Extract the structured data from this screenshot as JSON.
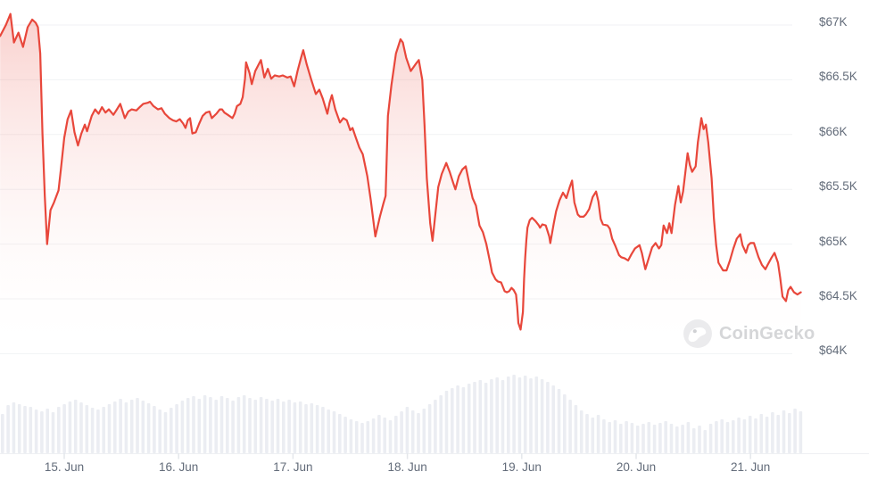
{
  "watermark": {
    "text": "CoinGecko"
  },
  "colors": {
    "background": "#ffffff",
    "line": "#e8473b",
    "fill_top": "rgba(232,71,59,0.26)",
    "fill_bottom": "rgba(255,255,255,0)",
    "grid": "#f1f2f4",
    "axis_text": "#636c7a",
    "tick": "#e4e7eb",
    "separator": "#eef0f3",
    "volume_bar": "#ebedf2",
    "watermark_text": "#d5d6d8",
    "watermark_circle": "#ebebed",
    "watermark_eye": "#d0d1d4"
  },
  "chart_data": {
    "type": "line",
    "title": "",
    "legend": "none",
    "grid": "horizontal-only",
    "y_axis": {
      "tick_labels": [
        "$67K",
        "$66.5K",
        "$66K",
        "$65.5K",
        "$65K",
        "$64.5K",
        "$64K"
      ],
      "tick_values_k": [
        67,
        66.5,
        66,
        65.5,
        65,
        64.5,
        64
      ],
      "unit": "USD thousands"
    },
    "x_axis": {
      "tick_labels": [
        "15. Jun",
        "16. Jun",
        "17. Jun",
        "18. Jun",
        "19. Jun",
        "20. Jun",
        "21. Jun"
      ],
      "tick_days": [
        15,
        16,
        17,
        18,
        19,
        20,
        21
      ],
      "range_days": [
        14.44,
        21.46
      ]
    },
    "price_points": [
      [
        14.44,
        66.9
      ],
      [
        14.49,
        67.0
      ],
      [
        14.53,
        67.1
      ],
      [
        14.56,
        66.84
      ],
      [
        14.6,
        66.93
      ],
      [
        14.64,
        66.8
      ],
      [
        14.68,
        66.98
      ],
      [
        14.72,
        67.05
      ],
      [
        14.75,
        67.02
      ],
      [
        14.77,
        66.98
      ],
      [
        14.79,
        66.74
      ],
      [
        14.81,
        66.01
      ],
      [
        14.83,
        65.44
      ],
      [
        14.85,
        65.0
      ],
      [
        14.88,
        65.31
      ],
      [
        14.91,
        65.38
      ],
      [
        14.95,
        65.49
      ],
      [
        14.97,
        65.68
      ],
      [
        15.0,
        65.97
      ],
      [
        15.03,
        66.14
      ],
      [
        15.06,
        66.22
      ],
      [
        15.09,
        66.02
      ],
      [
        15.12,
        65.9
      ],
      [
        15.15,
        66.01
      ],
      [
        15.18,
        66.09
      ],
      [
        15.2,
        66.03
      ],
      [
        15.24,
        66.17
      ],
      [
        15.27,
        66.23
      ],
      [
        15.3,
        66.19
      ],
      [
        15.33,
        66.25
      ],
      [
        15.36,
        66.2
      ],
      [
        15.39,
        66.23
      ],
      [
        15.43,
        66.18
      ],
      [
        15.46,
        66.23
      ],
      [
        15.49,
        66.28
      ],
      [
        15.53,
        66.15
      ],
      [
        15.56,
        66.21
      ],
      [
        15.59,
        66.23
      ],
      [
        15.63,
        66.22
      ],
      [
        15.66,
        66.25
      ],
      [
        15.69,
        66.28
      ],
      [
        15.73,
        66.29
      ],
      [
        15.75,
        66.3
      ],
      [
        15.78,
        66.26
      ],
      [
        15.82,
        66.23
      ],
      [
        15.85,
        66.24
      ],
      [
        15.88,
        66.19
      ],
      [
        15.92,
        66.15
      ],
      [
        15.95,
        66.13
      ],
      [
        15.98,
        66.12
      ],
      [
        16.01,
        66.14
      ],
      [
        16.04,
        66.1
      ],
      [
        16.06,
        66.06
      ],
      [
        16.08,
        66.13
      ],
      [
        16.1,
        66.15
      ],
      [
        16.12,
        66.01
      ],
      [
        16.15,
        66.02
      ],
      [
        16.18,
        66.1
      ],
      [
        16.21,
        66.17
      ],
      [
        16.24,
        66.2
      ],
      [
        16.27,
        66.21
      ],
      [
        16.29,
        66.15
      ],
      [
        16.33,
        66.19
      ],
      [
        16.36,
        66.23
      ],
      [
        16.38,
        66.23
      ],
      [
        16.4,
        66.2
      ],
      [
        16.43,
        66.18
      ],
      [
        16.47,
        66.15
      ],
      [
        16.49,
        66.19
      ],
      [
        16.51,
        66.26
      ],
      [
        16.54,
        66.28
      ],
      [
        16.56,
        66.34
      ],
      [
        16.58,
        66.51
      ],
      [
        16.59,
        66.66
      ],
      [
        16.62,
        66.56
      ],
      [
        16.64,
        66.46
      ],
      [
        16.67,
        66.58
      ],
      [
        16.7,
        66.64
      ],
      [
        16.72,
        66.68
      ],
      [
        16.75,
        66.52
      ],
      [
        16.78,
        66.6
      ],
      [
        16.81,
        66.51
      ],
      [
        16.84,
        66.54
      ],
      [
        16.88,
        66.53
      ],
      [
        16.91,
        66.54
      ],
      [
        16.95,
        66.52
      ],
      [
        16.98,
        66.53
      ],
      [
        17.01,
        66.44
      ],
      [
        17.04,
        66.58
      ],
      [
        17.07,
        66.7
      ],
      [
        17.09,
        66.77
      ],
      [
        17.12,
        66.64
      ],
      [
        17.16,
        66.5
      ],
      [
        17.2,
        66.37
      ],
      [
        17.23,
        66.41
      ],
      [
        17.26,
        66.33
      ],
      [
        17.3,
        66.19
      ],
      [
        17.32,
        66.29
      ],
      [
        17.34,
        66.36
      ],
      [
        17.37,
        66.23
      ],
      [
        17.41,
        66.11
      ],
      [
        17.44,
        66.15
      ],
      [
        17.47,
        66.13
      ],
      [
        17.5,
        66.04
      ],
      [
        17.52,
        66.06
      ],
      [
        17.55,
        65.97
      ],
      [
        17.58,
        65.88
      ],
      [
        17.61,
        65.82
      ],
      [
        17.65,
        65.62
      ],
      [
        17.68,
        65.4
      ],
      [
        17.72,
        65.07
      ],
      [
        17.76,
        65.25
      ],
      [
        17.79,
        65.37
      ],
      [
        17.81,
        65.44
      ],
      [
        17.83,
        66.17
      ],
      [
        17.86,
        66.45
      ],
      [
        17.9,
        66.74
      ],
      [
        17.94,
        66.87
      ],
      [
        17.96,
        66.84
      ],
      [
        17.99,
        66.7
      ],
      [
        18.03,
        66.58
      ],
      [
        18.07,
        66.64
      ],
      [
        18.1,
        66.68
      ],
      [
        18.13,
        66.5
      ],
      [
        18.15,
        66.09
      ],
      [
        18.17,
        65.6
      ],
      [
        18.2,
        65.19
      ],
      [
        18.22,
        65.03
      ],
      [
        18.24,
        65.23
      ],
      [
        18.27,
        65.52
      ],
      [
        18.3,
        65.64
      ],
      [
        18.34,
        65.74
      ],
      [
        18.37,
        65.66
      ],
      [
        18.4,
        65.56
      ],
      [
        18.42,
        65.5
      ],
      [
        18.45,
        65.62
      ],
      [
        18.48,
        65.68
      ],
      [
        18.51,
        65.71
      ],
      [
        18.54,
        65.56
      ],
      [
        18.57,
        65.42
      ],
      [
        18.6,
        65.35
      ],
      [
        18.63,
        65.17
      ],
      [
        18.66,
        65.11
      ],
      [
        18.69,
        65.0
      ],
      [
        18.72,
        64.85
      ],
      [
        18.74,
        64.74
      ],
      [
        18.77,
        64.68
      ],
      [
        18.79,
        64.66
      ],
      [
        18.82,
        64.65
      ],
      [
        18.85,
        64.57
      ],
      [
        18.87,
        64.56
      ],
      [
        18.89,
        64.57
      ],
      [
        18.91,
        64.6
      ],
      [
        18.93,
        64.58
      ],
      [
        18.95,
        64.54
      ],
      [
        18.96,
        64.43
      ],
      [
        18.97,
        64.28
      ],
      [
        18.99,
        64.22
      ],
      [
        19.01,
        64.38
      ],
      [
        19.02,
        64.68
      ],
      [
        19.03,
        64.87
      ],
      [
        19.04,
        65.03
      ],
      [
        19.05,
        65.15
      ],
      [
        19.07,
        65.22
      ],
      [
        19.09,
        65.24
      ],
      [
        19.12,
        65.21
      ],
      [
        19.15,
        65.17
      ],
      [
        19.16,
        65.15
      ],
      [
        19.18,
        65.18
      ],
      [
        19.21,
        65.17
      ],
      [
        19.24,
        65.07
      ],
      [
        19.25,
        65.01
      ],
      [
        19.28,
        65.19
      ],
      [
        19.3,
        65.3
      ],
      [
        19.33,
        65.4
      ],
      [
        19.36,
        65.47
      ],
      [
        19.39,
        65.42
      ],
      [
        19.42,
        65.52
      ],
      [
        19.44,
        65.58
      ],
      [
        19.46,
        65.38
      ],
      [
        19.49,
        65.27
      ],
      [
        19.51,
        65.25
      ],
      [
        19.54,
        65.25
      ],
      [
        19.56,
        65.27
      ],
      [
        19.59,
        65.32
      ],
      [
        19.62,
        65.43
      ],
      [
        19.65,
        65.48
      ],
      [
        19.67,
        65.39
      ],
      [
        19.69,
        65.23
      ],
      [
        19.71,
        65.18
      ],
      [
        19.75,
        65.17
      ],
      [
        19.77,
        65.14
      ],
      [
        19.79,
        65.05
      ],
      [
        19.82,
        64.98
      ],
      [
        19.85,
        64.9
      ],
      [
        19.87,
        64.88
      ],
      [
        19.9,
        64.87
      ],
      [
        19.93,
        64.85
      ],
      [
        19.96,
        64.91
      ],
      [
        19.99,
        64.96
      ],
      [
        20.03,
        64.99
      ],
      [
        20.05,
        64.92
      ],
      [
        20.08,
        64.77
      ],
      [
        20.11,
        64.87
      ],
      [
        20.14,
        64.97
      ],
      [
        20.17,
        65.01
      ],
      [
        20.2,
        64.96
      ],
      [
        20.22,
        64.99
      ],
      [
        20.24,
        65.17
      ],
      [
        20.27,
        65.1
      ],
      [
        20.29,
        65.19
      ],
      [
        20.31,
        65.1
      ],
      [
        20.34,
        65.36
      ],
      [
        20.37,
        65.53
      ],
      [
        20.39,
        65.38
      ],
      [
        20.41,
        65.48
      ],
      [
        20.45,
        65.83
      ],
      [
        20.47,
        65.72
      ],
      [
        20.49,
        65.66
      ],
      [
        20.52,
        65.71
      ],
      [
        20.54,
        65.93
      ],
      [
        20.57,
        66.15
      ],
      [
        20.59,
        66.05
      ],
      [
        20.61,
        66.09
      ],
      [
        20.63,
        65.93
      ],
      [
        20.66,
        65.6
      ],
      [
        20.68,
        65.23
      ],
      [
        20.7,
        64.99
      ],
      [
        20.72,
        64.83
      ],
      [
        20.76,
        64.76
      ],
      [
        20.79,
        64.76
      ],
      [
        20.82,
        64.85
      ],
      [
        20.85,
        64.96
      ],
      [
        20.88,
        65.05
      ],
      [
        20.91,
        65.09
      ],
      [
        20.93,
        64.99
      ],
      [
        20.96,
        64.92
      ],
      [
        20.98,
        64.99
      ],
      [
        21.0,
        65.01
      ],
      [
        21.03,
        65.01
      ],
      [
        21.07,
        64.88
      ],
      [
        21.1,
        64.81
      ],
      [
        21.13,
        64.77
      ],
      [
        21.15,
        64.81
      ],
      [
        21.18,
        64.87
      ],
      [
        21.21,
        64.92
      ],
      [
        21.24,
        64.83
      ],
      [
        21.26,
        64.69
      ],
      [
        21.28,
        64.52
      ],
      [
        21.31,
        64.48
      ],
      [
        21.33,
        64.58
      ],
      [
        21.35,
        64.61
      ],
      [
        21.38,
        64.56
      ],
      [
        21.41,
        64.54
      ],
      [
        21.44,
        64.56
      ]
    ],
    "volume_bars": [
      44,
      54,
      57,
      55,
      53,
      52,
      49,
      47,
      50,
      46,
      52,
      55,
      58,
      60,
      57,
      54,
      51,
      49,
      52,
      55,
      58,
      61,
      57,
      60,
      62,
      59,
      56,
      53,
      49,
      46,
      51,
      55,
      59,
      62,
      64,
      61,
      65,
      63,
      60,
      64,
      62,
      59,
      63,
      65,
      62,
      60,
      63,
      61,
      59,
      61,
      58,
      60,
      57,
      58,
      55,
      56,
      54,
      52,
      49,
      47,
      44,
      41,
      38,
      36,
      34,
      36,
      39,
      43,
      40,
      37,
      42,
      47,
      52,
      48,
      45,
      50,
      55,
      60,
      65,
      70,
      73,
      76,
      74,
      78,
      80,
      82,
      79,
      83,
      85,
      82,
      86,
      88,
      85,
      87,
      84,
      86,
      83,
      80,
      76,
      72,
      66,
      60,
      54,
      48,
      44,
      40,
      43,
      38,
      35,
      37,
      33,
      36,
      34,
      31,
      33,
      35,
      32,
      34,
      36,
      33,
      30,
      32,
      35,
      28,
      31,
      26,
      33,
      36,
      38,
      35,
      37,
      40,
      38,
      42,
      39,
      44,
      41,
      46,
      43,
      48,
      45,
      50,
      47
    ]
  }
}
